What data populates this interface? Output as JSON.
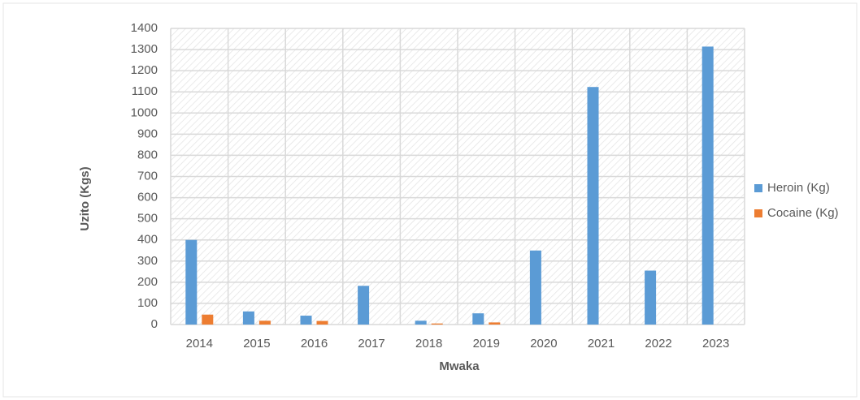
{
  "chart_data": {
    "type": "bar",
    "x_label": "Mwaka",
    "y_label": "Uzito (Kgs)",
    "categories": [
      "2014",
      "2015",
      "2016",
      "2017",
      "2018",
      "2019",
      "2020",
      "2021",
      "2022",
      "2023"
    ],
    "series": [
      {
        "name": "Heroin (Kg)",
        "color": "#5b9bd5",
        "values": [
          400,
          62,
          42,
          183,
          18,
          53,
          350,
          1123,
          255,
          1314
        ]
      },
      {
        "name": "Cocaine (Kg)",
        "color": "#ed7d31",
        "values": [
          47,
          18,
          17,
          0,
          5,
          10,
          0,
          0,
          0,
          0
        ]
      }
    ],
    "ylim": [
      0,
      1400
    ],
    "yticks": [
      0,
      100,
      200,
      300,
      400,
      500,
      600,
      700,
      800,
      900,
      1000,
      1100,
      1200,
      1300,
      1400
    ],
    "grid": true,
    "legend": "right"
  }
}
